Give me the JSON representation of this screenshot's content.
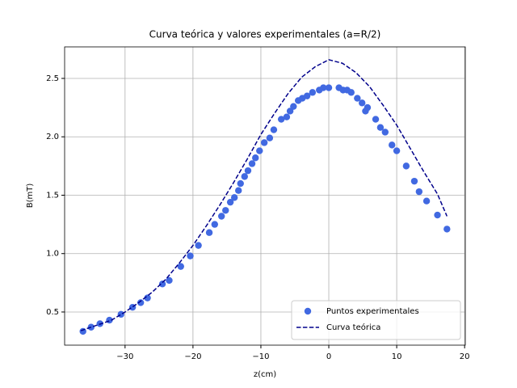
{
  "chart_data": {
    "type": "scatter",
    "title": "Curva teórica y valores experimentales (a=R/2)",
    "xlabel": "z(cm)",
    "ylabel": "B(mT)",
    "xlim": [
      -38.9,
      20.1
    ],
    "ylim": [
      0.216,
      2.77
    ],
    "xticks": [
      {
        "value": -30,
        "label": "−30"
      },
      {
        "value": -20,
        "label": "−20"
      },
      {
        "value": -10,
        "label": "−10"
      },
      0,
      10,
      20
    ],
    "yticks": [
      0.5,
      {
        "value": 1.0,
        "label": "1.0"
      },
      1.5,
      {
        "value": 2.0,
        "label": "2.0"
      },
      2.5
    ],
    "grid": true,
    "legend": "lower right",
    "series": [
      {
        "name": "Puntos experimentales",
        "type": "scatter",
        "color": "#4169e1",
        "x": [
          -36.2,
          -35.0,
          -33.7,
          -32.3,
          -30.6,
          -28.9,
          -27.7,
          -26.7,
          -24.5,
          -23.5,
          -21.8,
          -20.4,
          -19.2,
          -17.6,
          -16.8,
          -15.8,
          -15.2,
          -14.5,
          -13.9,
          -13.3,
          -13.0,
          -12.4,
          -11.9,
          -11.3,
          -10.8,
          -10.2,
          -9.5,
          -8.7,
          -8.1,
          -7.0,
          -6.2,
          -5.7,
          -5.2,
          -4.5,
          -3.9,
          -3.2,
          -2.4,
          -1.4,
          -0.8,
          0.0,
          1.5,
          2.1,
          2.7,
          3.3,
          4.2,
          4.9,
          5.4,
          5.7,
          6.9,
          7.6,
          8.3,
          9.3,
          10.0,
          11.4,
          12.6,
          13.3,
          14.4,
          16.0,
          17.4
        ],
        "values": [
          0.334,
          0.37,
          0.4,
          0.43,
          0.48,
          0.54,
          0.58,
          0.62,
          0.74,
          0.77,
          0.89,
          0.98,
          1.07,
          1.18,
          1.25,
          1.32,
          1.37,
          1.44,
          1.48,
          1.54,
          1.6,
          1.66,
          1.71,
          1.77,
          1.82,
          1.88,
          1.95,
          1.99,
          2.06,
          2.15,
          2.17,
          2.22,
          2.26,
          2.31,
          2.33,
          2.35,
          2.38,
          2.4,
          2.42,
          2.42,
          2.42,
          2.4,
          2.4,
          2.38,
          2.33,
          2.29,
          2.22,
          2.25,
          2.15,
          2.08,
          2.04,
          1.93,
          1.88,
          1.75,
          1.62,
          1.53,
          1.45,
          1.33,
          1.21
        ]
      },
      {
        "name": "Curva teórica",
        "type": "line",
        "color": "#00008b",
        "x": [
          -36.5,
          -34,
          -32,
          -30,
          -28,
          -26,
          -24,
          -22,
          -20,
          -18,
          -16,
          -14,
          -12,
          -10,
          -8,
          -6,
          -4,
          -2,
          0,
          2,
          4,
          6,
          8,
          10,
          12,
          14,
          16,
          17.4
        ],
        "values": [
          0.34,
          0.39,
          0.43,
          0.5,
          0.58,
          0.67,
          0.78,
          0.92,
          1.07,
          1.24,
          1.42,
          1.61,
          1.81,
          2.02,
          2.2,
          2.37,
          2.51,
          2.6,
          2.66,
          2.63,
          2.55,
          2.43,
          2.27,
          2.1,
          1.9,
          1.7,
          1.51,
          1.32
        ]
      }
    ]
  }
}
